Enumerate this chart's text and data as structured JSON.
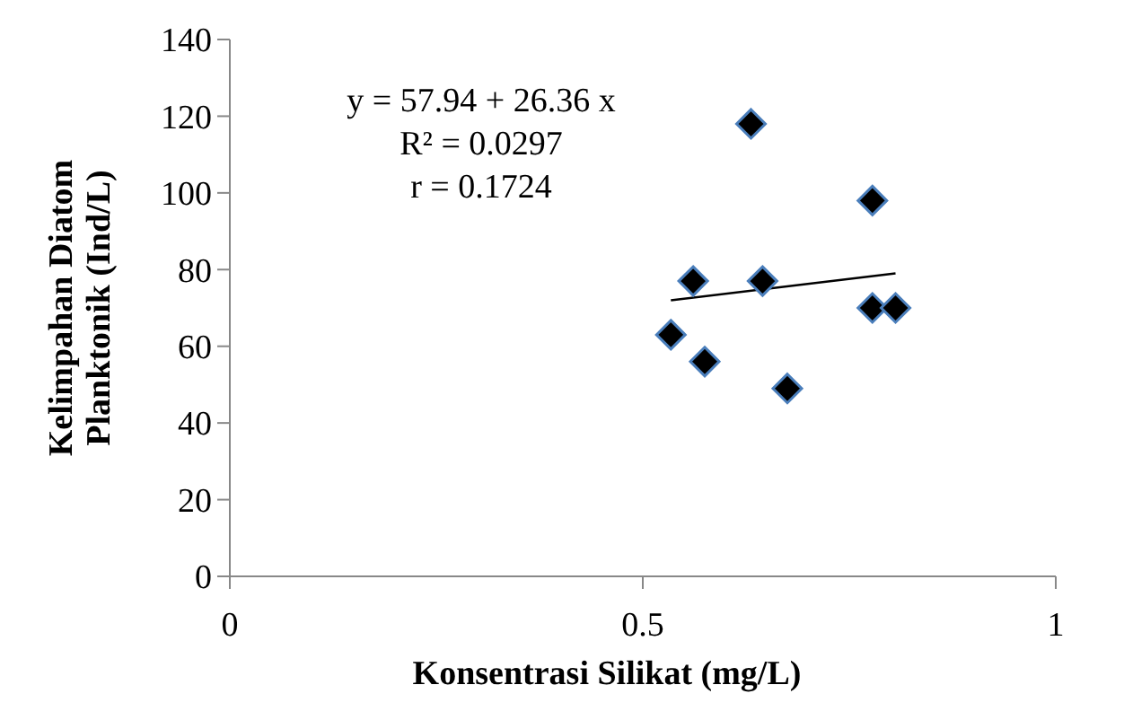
{
  "chart_data": {
    "type": "scatter",
    "xlabel": "Konsentrasi Silikat (mg/L)",
    "ylabel": "Kelimpahan Diatom Planktonik (Ind/L)",
    "xlim": [
      0,
      1
    ],
    "xticks": [
      0,
      0.5,
      1
    ],
    "ylim": [
      0,
      140
    ],
    "yticks": [
      0,
      20,
      40,
      60,
      80,
      100,
      120,
      140
    ],
    "grid": false,
    "annotations": [
      "y = 57.94 + 26.36 x",
      "R² = 0.0297",
      "r = 0.1724"
    ],
    "series": [
      {
        "color": "#000000",
        "marker": "diamond",
        "x": [
          0.534,
          0.561,
          0.575,
          0.631,
          0.645,
          0.675,
          0.778,
          0.778,
          0.806
        ],
        "values": [
          63,
          77,
          56,
          118,
          77,
          49,
          98,
          70,
          70
        ]
      },
      {
        "type": "line",
        "color": "#000000",
        "x": [
          0.534,
          0.806
        ],
        "values": [
          72,
          79
        ]
      }
    ]
  }
}
